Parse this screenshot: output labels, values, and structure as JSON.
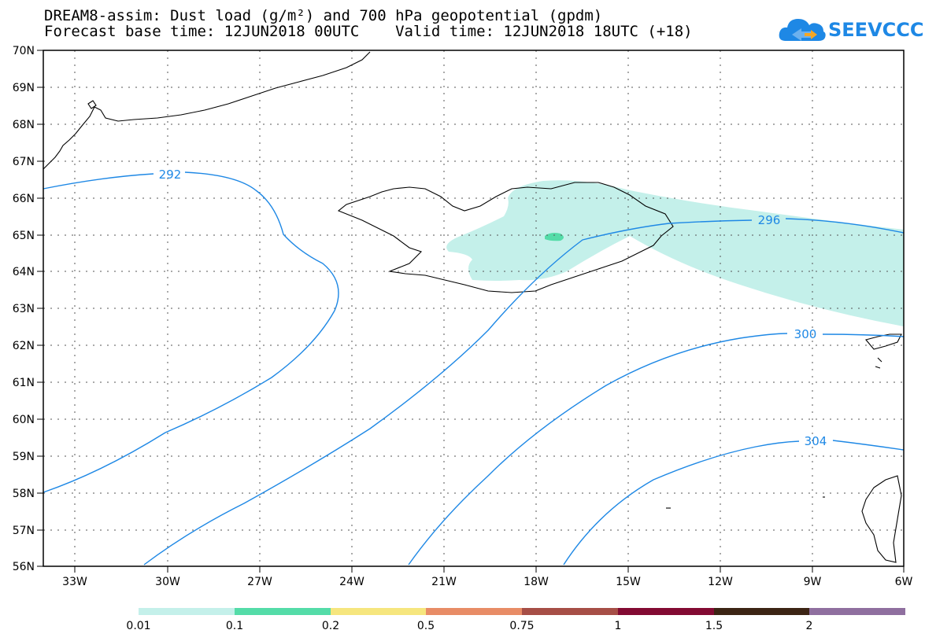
{
  "title_line1": "DREAM8-assim: Dust load (g/m²) and 700 hPa geopotential (gpdm)",
  "title_line2": "Forecast base time: 12JUN2018 00UTC    Valid time: 12JUN2018 18UTC (+18)",
  "logo_text": "SEEVCCC",
  "lat_labels": [
    "70N",
    "69N",
    "68N",
    "67N",
    "66N",
    "65N",
    "64N",
    "63N",
    "62N",
    "61N",
    "60N",
    "59N",
    "58N",
    "57N",
    "56N"
  ],
  "lon_labels": [
    "33W",
    "30W",
    "27W",
    "24W",
    "21W",
    "18W",
    "15W",
    "12W",
    "9W",
    "6W"
  ],
  "contour_labels": [
    "292",
    "296",
    "300",
    "304"
  ],
  "colorbar": {
    "colors": [
      "#c4f0ea",
      "#54dca8",
      "#f6e67e",
      "#e88c66",
      "#a64e46",
      "#820a32",
      "#3c2414",
      "#8f6f9f"
    ],
    "labels": [
      "0.01",
      "0.1",
      "0.2",
      "0.5",
      "0.75",
      "1",
      "1.5",
      "2"
    ]
  },
  "colors": {
    "contour": "#1e88e5",
    "dust_low": "#c4f0ea",
    "dust_mid": "#54dca8"
  }
}
